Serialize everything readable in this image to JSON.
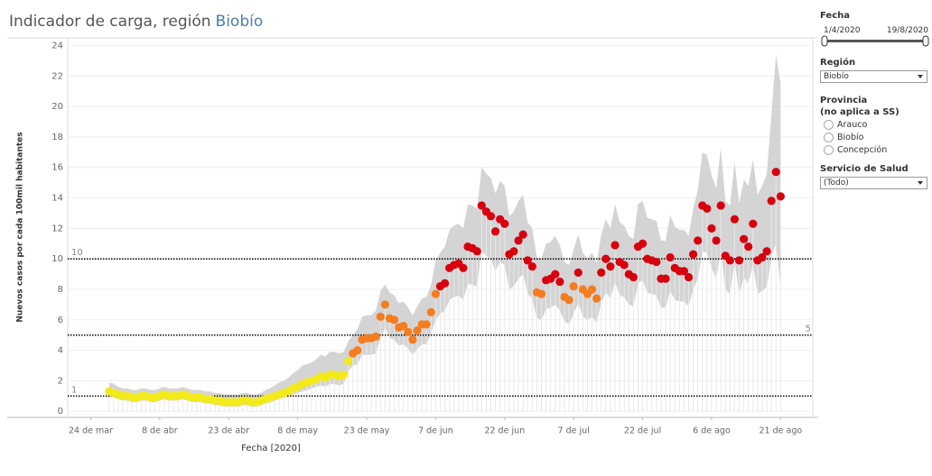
{
  "chart_data": {
    "type": "scatter",
    "title": "Indicador de carga, región",
    "title_region": "Biobío",
    "x_label": "Fecha [2020]",
    "y_label": "Nuevos casos por cada 100mil habitantes",
    "xlim": [
      "2020-03-19",
      "2020-08-28"
    ],
    "ylim": [
      -0.4,
      24.5
    ],
    "xticks": [
      {
        "value": "2020-03-24",
        "label": "24 de mar"
      },
      {
        "value": "2020-04-08",
        "label": "8 de abr"
      },
      {
        "value": "2020-04-23",
        "label": "23 de abr"
      },
      {
        "value": "2020-05-08",
        "label": "8 de may"
      },
      {
        "value": "2020-05-23",
        "label": "23 de may"
      },
      {
        "value": "2020-06-07",
        "label": "7 de jun"
      },
      {
        "value": "2020-06-22",
        "label": "22 de jun"
      },
      {
        "value": "2020-07-07",
        "label": "7 de jul"
      },
      {
        "value": "2020-07-22",
        "label": "22 de jul"
      },
      {
        "value": "2020-08-06",
        "label": "6 de ago"
      },
      {
        "value": "2020-08-21",
        "label": "21 de ago"
      }
    ],
    "yticks": [
      0,
      2,
      4,
      6,
      8,
      10,
      12,
      14,
      16,
      18,
      20,
      22,
      24
    ],
    "grid": true,
    "reference_lines": [
      {
        "value": 1,
        "side": "left"
      },
      {
        "value": 5,
        "side": "right"
      },
      {
        "value": 10,
        "side": "left"
      }
    ],
    "x": [
      "2020-03-28",
      "2020-03-29",
      "2020-03-30",
      "2020-03-31",
      "2020-04-01",
      "2020-04-02",
      "2020-04-03",
      "2020-04-04",
      "2020-04-05",
      "2020-04-06",
      "2020-04-07",
      "2020-04-08",
      "2020-04-09",
      "2020-04-10",
      "2020-04-11",
      "2020-04-12",
      "2020-04-13",
      "2020-04-14",
      "2020-04-15",
      "2020-04-16",
      "2020-04-17",
      "2020-04-18",
      "2020-04-19",
      "2020-04-20",
      "2020-04-21",
      "2020-04-22",
      "2020-04-23",
      "2020-04-24",
      "2020-04-25",
      "2020-04-26",
      "2020-04-27",
      "2020-04-28",
      "2020-04-29",
      "2020-04-30",
      "2020-05-01",
      "2020-05-02",
      "2020-05-03",
      "2020-05-04",
      "2020-05-05",
      "2020-05-06",
      "2020-05-07",
      "2020-05-08",
      "2020-05-09",
      "2020-05-10",
      "2020-05-11",
      "2020-05-12",
      "2020-05-13",
      "2020-05-14",
      "2020-05-15",
      "2020-05-16",
      "2020-05-17",
      "2020-05-18",
      "2020-05-19",
      "2020-05-20",
      "2020-05-21",
      "2020-05-22",
      "2020-05-23",
      "2020-05-24",
      "2020-05-25",
      "2020-05-26",
      "2020-05-27",
      "2020-05-28",
      "2020-05-29",
      "2020-05-30",
      "2020-05-31",
      "2020-06-01",
      "2020-06-02",
      "2020-06-03",
      "2020-06-04",
      "2020-06-05",
      "2020-06-06",
      "2020-06-07",
      "2020-06-08",
      "2020-06-09",
      "2020-06-10",
      "2020-06-11",
      "2020-06-12",
      "2020-06-13",
      "2020-06-14",
      "2020-06-15",
      "2020-06-16",
      "2020-06-17",
      "2020-06-18",
      "2020-06-19",
      "2020-06-20",
      "2020-06-21",
      "2020-06-22",
      "2020-06-23",
      "2020-06-24",
      "2020-06-25",
      "2020-06-26",
      "2020-06-27",
      "2020-06-28",
      "2020-06-29",
      "2020-06-30",
      "2020-07-01",
      "2020-07-02",
      "2020-07-03",
      "2020-07-04",
      "2020-07-05",
      "2020-07-06",
      "2020-07-07",
      "2020-07-08",
      "2020-07-09",
      "2020-07-10",
      "2020-07-11",
      "2020-07-12",
      "2020-07-13",
      "2020-07-14",
      "2020-07-15",
      "2020-07-16",
      "2020-07-17",
      "2020-07-18",
      "2020-07-19",
      "2020-07-20",
      "2020-07-21",
      "2020-07-22",
      "2020-07-23",
      "2020-07-24",
      "2020-07-25",
      "2020-07-26",
      "2020-07-27",
      "2020-07-28",
      "2020-07-29",
      "2020-07-30",
      "2020-07-31",
      "2020-08-01",
      "2020-08-02",
      "2020-08-03",
      "2020-08-04",
      "2020-08-05",
      "2020-08-06",
      "2020-08-07",
      "2020-08-08",
      "2020-08-09",
      "2020-08-10",
      "2020-08-11",
      "2020-08-12",
      "2020-08-13",
      "2020-08-14",
      "2020-08-15",
      "2020-08-16",
      "2020-08-17",
      "2020-08-18",
      "2020-08-19",
      "2020-08-20",
      "2020-08-21"
    ],
    "values": [
      1.3,
      1.2,
      1.1,
      1.0,
      1.0,
      0.9,
      0.9,
      1.0,
      1.0,
      0.9,
      0.9,
      1.0,
      1.1,
      1.0,
      1.0,
      1.0,
      1.1,
      1.0,
      0.9,
      0.9,
      0.9,
      0.8,
      0.8,
      0.7,
      0.7,
      0.6,
      0.6,
      0.6,
      0.6,
      0.7,
      0.7,
      0.6,
      0.6,
      0.7,
      0.8,
      0.9,
      1.0,
      1.1,
      1.2,
      1.3,
      1.5,
      1.6,
      1.8,
      1.9,
      2.0,
      2.1,
      2.3,
      2.2,
      2.4,
      2.4,
      2.3,
      2.4,
      3.3,
      3.8,
      4.0,
      4.7,
      4.8,
      4.8,
      4.9,
      6.2,
      7.0,
      6.1,
      6.0,
      5.5,
      5.6,
      5.2,
      4.7,
      5.3,
      5.7,
      5.7,
      6.5,
      7.7,
      8.2,
      8.4,
      9.4,
      9.6,
      9.7,
      9.4,
      10.8,
      10.7,
      10.5,
      13.5,
      13.1,
      12.8,
      11.8,
      12.6,
      12.3,
      10.3,
      10.5,
      11.2,
      11.6,
      9.9,
      9.5,
      7.8,
      7.7,
      8.6,
      8.7,
      9.0,
      8.5,
      7.5,
      7.3,
      8.2,
      9.1,
      8.0,
      7.7,
      8.0,
      7.4,
      9.1,
      10.0,
      9.5,
      10.9,
      9.8,
      9.6,
      9.0,
      8.8,
      10.8,
      11.0,
      10.0,
      9.9,
      9.8,
      8.7,
      8.7,
      10.1,
      9.4,
      9.2,
      9.2,
      8.8,
      10.3,
      11.2,
      13.5,
      13.3,
      12.0,
      11.2,
      13.5,
      10.2,
      9.9,
      12.6,
      9.9,
      11.3,
      10.8,
      12.3,
      9.9,
      10.1,
      10.5,
      13.8,
      15.7,
      14.1
    ],
    "colors": [
      "#f3ea1c",
      "#f3ea1c",
      "#f3ea1c",
      "#f3ea1c",
      "#f3ea1c",
      "#f3ea1c",
      "#f3ea1c",
      "#f3ea1c",
      "#f3ea1c",
      "#f3ea1c",
      "#f3ea1c",
      "#f3ea1c",
      "#f3ea1c",
      "#f3ea1c",
      "#f3ea1c",
      "#f3ea1c",
      "#f3ea1c",
      "#f3ea1c",
      "#f3ea1c",
      "#f3ea1c",
      "#f3ea1c",
      "#f3ea1c",
      "#f3ea1c",
      "#f3ea1c",
      "#f3ea1c",
      "#f3ea1c",
      "#f3ea1c",
      "#f3ea1c",
      "#f3ea1c",
      "#f3ea1c",
      "#f3ea1c",
      "#f3ea1c",
      "#f3ea1c",
      "#f3ea1c",
      "#f3ea1c",
      "#f3ea1c",
      "#f3ea1c",
      "#f3ea1c",
      "#f3ea1c",
      "#f3ea1c",
      "#f3ea1c",
      "#f3ea1c",
      "#f3ea1c",
      "#f3ea1c",
      "#f3ea1c",
      "#f3ea1c",
      "#f3ea1c",
      "#f3ea1c",
      "#f3ea1c",
      "#f3ea1c",
      "#f3ea1c",
      "#f3ea1c",
      "#f3ea1c",
      "#f47d1f",
      "#f47d1f",
      "#f47d1f",
      "#f47d1f",
      "#f47d1f",
      "#f47d1f",
      "#f47d1f",
      "#f47d1f",
      "#f47d1f",
      "#f47d1f",
      "#f47d1f",
      "#f47d1f",
      "#f47d1f",
      "#f47d1f",
      "#f47d1f",
      "#f47d1f",
      "#f47d1f",
      "#f47d1f",
      "#f47d1f",
      "#d7000f",
      "#d7000f",
      "#d7000f",
      "#d7000f",
      "#d7000f",
      "#d7000f",
      "#d7000f",
      "#d7000f",
      "#d7000f",
      "#d7000f",
      "#d7000f",
      "#d7000f",
      "#d7000f",
      "#d7000f",
      "#d7000f",
      "#d7000f",
      "#d7000f",
      "#d7000f",
      "#d7000f",
      "#d7000f",
      "#d7000f",
      "#f47d1f",
      "#f47d1f",
      "#d7000f",
      "#d7000f",
      "#d7000f",
      "#d7000f",
      "#f47d1f",
      "#f47d1f",
      "#f47d1f",
      "#d7000f",
      "#f47d1f",
      "#f47d1f",
      "#f47d1f",
      "#f47d1f",
      "#d7000f",
      "#d7000f",
      "#d7000f",
      "#d7000f",
      "#d7000f",
      "#d7000f",
      "#d7000f",
      "#d7000f",
      "#d7000f",
      "#d7000f",
      "#d7000f",
      "#d7000f",
      "#d7000f",
      "#d7000f",
      "#d7000f",
      "#d7000f",
      "#d7000f",
      "#d7000f",
      "#d7000f",
      "#d7000f",
      "#d7000f",
      "#d7000f",
      "#d7000f",
      "#d7000f",
      "#d7000f",
      "#d7000f",
      "#d7000f",
      "#d7000f",
      "#d7000f",
      "#d7000f",
      "#d7000f",
      "#d7000f",
      "#d7000f",
      "#d7000f",
      "#d7000f",
      "#d7000f",
      "#d7000f",
      "#d7000f",
      "#d7000f",
      "#d7000f",
      "#d7000f",
      "#d7000f",
      "#d7000f"
    ],
    "band": {
      "color": "#d4d4d4",
      "upper": [
        1.9,
        1.8,
        1.6,
        1.5,
        1.5,
        1.4,
        1.4,
        1.5,
        1.5,
        1.4,
        1.4,
        1.5,
        1.6,
        1.5,
        1.5,
        1.5,
        1.6,
        1.5,
        1.4,
        1.4,
        1.4,
        1.3,
        1.3,
        1.2,
        1.2,
        1.1,
        1.1,
        1.1,
        1.1,
        1.2,
        1.2,
        1.1,
        1.1,
        1.2,
        1.4,
        1.5,
        1.7,
        1.9,
        2.0,
        2.2,
        2.5,
        2.7,
        3.0,
        3.1,
        3.2,
        3.4,
        3.7,
        3.6,
        3.9,
        3.9,
        3.8,
        3.9,
        4.6,
        5.0,
        5.4,
        6.2,
        6.3,
        6.3,
        6.6,
        7.9,
        8.3,
        7.8,
        7.6,
        7.1,
        7.2,
        6.8,
        6.3,
        6.9,
        7.4,
        7.5,
        8.3,
        9.9,
        10.4,
        10.8,
        11.9,
        12.2,
        12.3,
        12.0,
        13.6,
        13.5,
        13.3,
        16.0,
        15.6,
        15.3,
        14.3,
        15.1,
        14.8,
        12.8,
        13.1,
        13.8,
        14.2,
        12.4,
        12.0,
        10.1,
        10.0,
        11.0,
        11.1,
        11.5,
        10.9,
        9.8,
        9.6,
        10.6,
        11.6,
        10.4,
        10.0,
        10.4,
        9.7,
        11.6,
        12.6,
        12.0,
        13.6,
        12.4,
        12.2,
        11.5,
        11.3,
        13.6,
        13.8,
        12.7,
        12.6,
        12.5,
        11.2,
        11.2,
        12.9,
        12.1,
        11.9,
        11.9,
        11.5,
        13.3,
        14.5,
        17.0,
        16.8,
        15.5,
        14.6,
        17.3,
        13.8,
        13.5,
        16.4,
        13.6,
        15.2,
        14.8,
        16.5,
        14.2,
        14.8,
        15.6,
        19.5,
        23.4,
        21.5
      ],
      "lower": [
        1.0,
        0.9,
        0.8,
        0.7,
        0.7,
        0.6,
        0.6,
        0.7,
        0.7,
        0.6,
        0.6,
        0.7,
        0.8,
        0.7,
        0.7,
        0.7,
        0.8,
        0.7,
        0.6,
        0.6,
        0.6,
        0.5,
        0.5,
        0.4,
        0.4,
        0.3,
        0.3,
        0.3,
        0.3,
        0.4,
        0.4,
        0.3,
        0.3,
        0.4,
        0.5,
        0.6,
        0.7,
        0.8,
        0.9,
        1.0,
        1.1,
        1.2,
        1.3,
        1.4,
        1.5,
        1.6,
        1.7,
        1.6,
        1.8,
        1.8,
        1.7,
        1.8,
        2.6,
        3.0,
        3.1,
        3.7,
        3.7,
        3.7,
        3.8,
        4.8,
        5.5,
        4.8,
        4.7,
        4.3,
        4.4,
        4.1,
        3.7,
        4.1,
        4.4,
        4.4,
        5.1,
        6.0,
        6.4,
        6.6,
        7.3,
        7.5,
        7.6,
        7.3,
        8.4,
        8.3,
        8.2,
        10.5,
        10.2,
        10.0,
        9.2,
        9.8,
        9.6,
        8.0,
        8.2,
        8.7,
        9.0,
        7.7,
        7.4,
        6.1,
        6.0,
        6.7,
        6.8,
        7.0,
        6.6,
        5.9,
        5.7,
        6.4,
        7.1,
        6.2,
        6.0,
        6.2,
        5.8,
        7.1,
        7.8,
        7.4,
        8.5,
        7.6,
        7.5,
        7.0,
        6.9,
        8.4,
        8.6,
        7.8,
        7.7,
        7.6,
        6.8,
        6.8,
        7.9,
        7.3,
        7.2,
        7.2,
        6.9,
        8.0,
        8.7,
        10.5,
        10.4,
        9.4,
        8.7,
        10.5,
        8.0,
        7.7,
        9.8,
        7.7,
        8.8,
        8.4,
        9.6,
        7.7,
        7.9,
        8.2,
        10.1,
        11.0,
        8.1
      ]
    }
  },
  "filters": {
    "fecha": {
      "title": "Fecha",
      "start": "1/4/2020",
      "end": "19/8/2020"
    },
    "region": {
      "title": "Región",
      "selected": "Biobío"
    },
    "provincia": {
      "title": "Provincia",
      "subtitle": "(no aplica a SS)",
      "options": [
        "Arauco",
        "Biobío",
        "Concepción"
      ]
    },
    "servicio": {
      "title": "Servicio de Salud",
      "selected": "(Todo)"
    }
  }
}
